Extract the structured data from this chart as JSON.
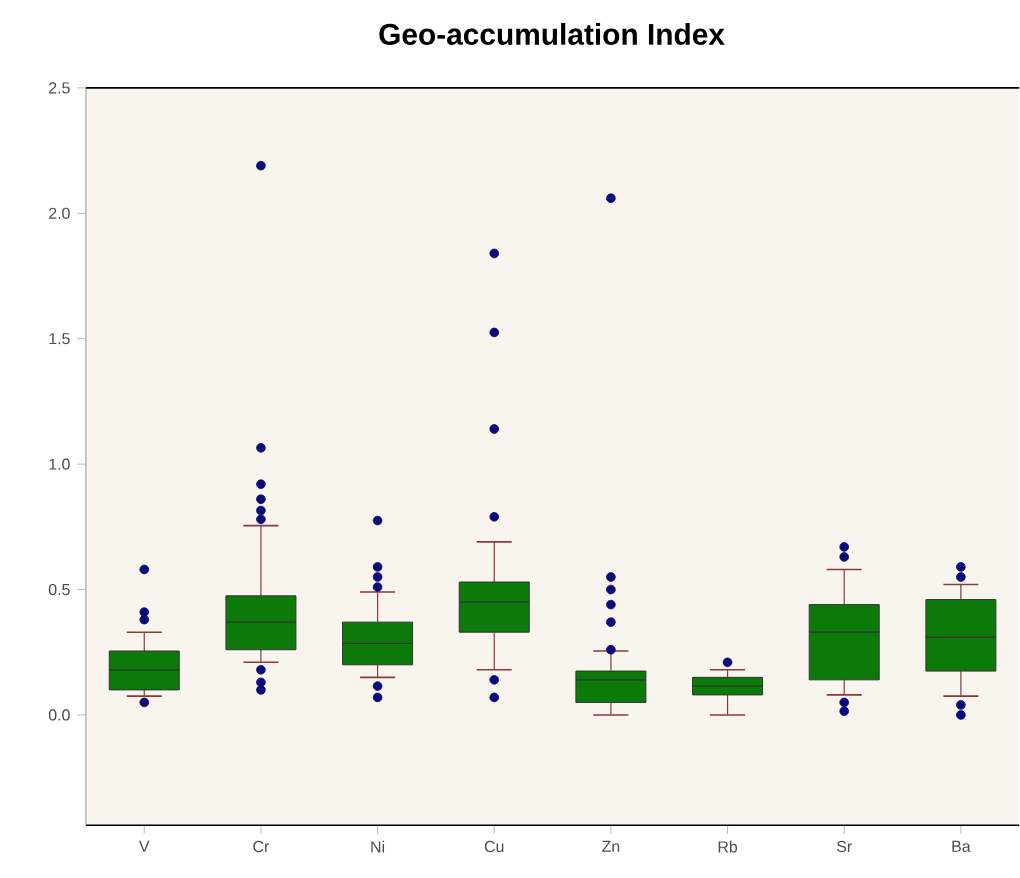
{
  "chart_data": {
    "type": "box",
    "title": "Geo-accumulation Index",
    "categories": [
      "V",
      "Cr",
      "Ni",
      "Cu",
      "Zn",
      "Rb",
      "Sr",
      "Ba"
    ],
    "color": "#0b7a0b",
    "boxes": [
      {
        "low": 0.075,
        "q1": 0.1,
        "median": 0.18,
        "q3": 0.255,
        "high": 0.33,
        "outliers": [
          0.58,
          0.41,
          0.38,
          0.05
        ]
      },
      {
        "low": 0.21,
        "q1": 0.26,
        "median": 0.37,
        "q3": 0.475,
        "high": 0.755,
        "outliers": [
          2.19,
          1.065,
          0.92,
          0.86,
          0.815,
          0.78,
          0.18,
          0.13,
          0.1
        ]
      },
      {
        "low": 0.15,
        "q1": 0.2,
        "median": 0.285,
        "q3": 0.37,
        "high": 0.49,
        "outliers": [
          0.775,
          0.59,
          0.55,
          0.51,
          0.115,
          0.07
        ]
      },
      {
        "low": 0.18,
        "q1": 0.33,
        "median": 0.45,
        "q3": 0.53,
        "high": 0.69,
        "outliers": [
          1.84,
          1.525,
          1.14,
          0.79,
          0.14,
          0.07
        ]
      },
      {
        "low": 0.0,
        "q1": 0.05,
        "median": 0.14,
        "q3": 0.175,
        "high": 0.255,
        "outliers": [
          2.06,
          0.55,
          0.5,
          0.44,
          0.37,
          0.26
        ]
      },
      {
        "low": 0.0,
        "q1": 0.08,
        "median": 0.115,
        "q3": 0.15,
        "high": 0.18,
        "outliers": [
          0.21
        ]
      },
      {
        "low": 0.08,
        "q1": 0.14,
        "median": 0.33,
        "q3": 0.44,
        "high": 0.58,
        "outliers": [
          0.67,
          0.63,
          0.05,
          0.015
        ]
      },
      {
        "low": 0.075,
        "q1": 0.175,
        "median": 0.31,
        "q3": 0.46,
        "high": 0.52,
        "outliers": [
          0.59,
          0.55,
          0.04,
          0.0
        ]
      }
    ],
    "ylim": [
      -0.44,
      2.5
    ],
    "yticks": [
      {
        "value": 0,
        "label": "0.0"
      },
      {
        "value": 0.5,
        "label": "0.5"
      },
      {
        "value": 1,
        "label": "1.0"
      },
      {
        "value": 1.5,
        "label": "1.5"
      },
      {
        "value": 2,
        "label": "2.0"
      },
      {
        "value": 2.5,
        "label": "2.5"
      }
    ],
    "grid": false
  }
}
